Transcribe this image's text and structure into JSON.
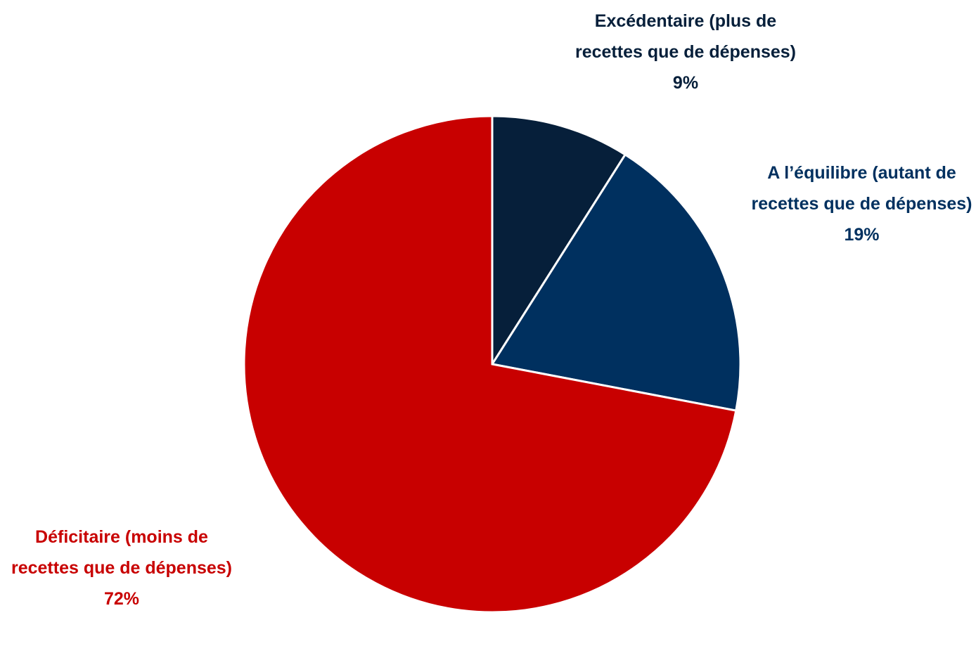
{
  "chart_data": {
    "type": "pie",
    "categories": [
      "Excédentaire (plus de recettes que de dépenses)",
      "A l’équilibre (autant de recettes que de dépenses)",
      "Déficitaire (moins de recettes que de dépenses)"
    ],
    "values": [
      9,
      19,
      72
    ],
    "value_labels": [
      "9%",
      "19%",
      "72%"
    ],
    "colors": [
      "#061f3a",
      "#00305f",
      "#c80000"
    ]
  }
}
